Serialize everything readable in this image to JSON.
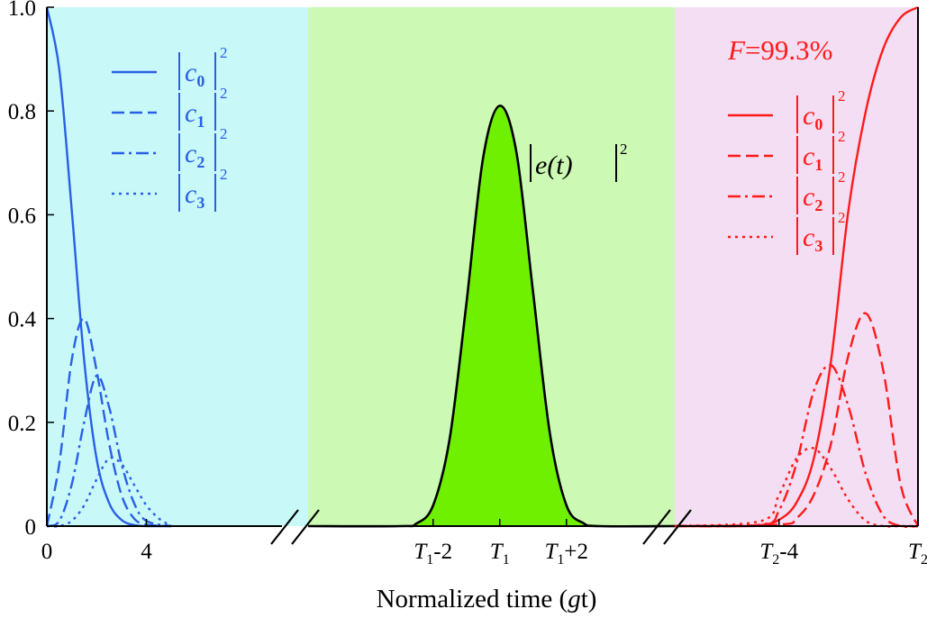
{
  "chart_data": {
    "type": "line",
    "xlabel": {
      "prefix": "Normalized time (",
      "var": "g",
      "suffix": "t)"
    },
    "ylim": [
      0,
      1.0
    ],
    "yticks": [
      "0",
      "0.2",
      "0.4",
      "0.6",
      "0.8",
      "1.0"
    ],
    "yvalues": [
      0,
      0.2,
      0.4,
      0.6,
      0.8,
      1.0
    ],
    "panels": [
      {
        "name": "initial",
        "background": "#c8f8f8",
        "color": "#2a60e6",
        "xlim": [
          0,
          10.5
        ],
        "xticks": [
          {
            "value": 0,
            "label": "0"
          },
          {
            "value": 4,
            "label": "4"
          }
        ],
        "legend": [
          "0",
          "1",
          "2",
          "3"
        ],
        "series": [
          {
            "name": "|c0|^2",
            "dash": "solid",
            "x": [
              0,
              0.5,
              1,
              1.5,
              2,
              2.5,
              3,
              3.5,
              4,
              5
            ],
            "y": [
              1.0,
              0.88,
              0.61,
              0.32,
              0.13,
              0.045,
              0.012,
              0.002,
              0.0,
              0.0
            ]
          },
          {
            "name": "|c1|^2",
            "dash": "dash",
            "x": [
              0,
              0.5,
              1,
              1.5,
              2,
              2.5,
              3,
              3.5,
              4,
              5
            ],
            "y": [
              0.0,
              0.12,
              0.32,
              0.4,
              0.3,
              0.16,
              0.06,
              0.015,
              0.003,
              0.0
            ]
          },
          {
            "name": "|c2|^2",
            "dash": "dashdot",
            "x": [
              0,
              0.5,
              1,
              1.5,
              2,
              2.5,
              3,
              3.5,
              4,
              5
            ],
            "y": [
              0.0,
              0.01,
              0.08,
              0.2,
              0.29,
              0.23,
              0.12,
              0.045,
              0.01,
              0.0
            ]
          },
          {
            "name": "|c3|^2",
            "dash": "dot",
            "x": [
              0,
              0.5,
              1,
              1.5,
              2,
              2.5,
              3,
              3.5,
              4,
              4.5,
              5
            ],
            "y": [
              0.0,
              0.0,
              0.01,
              0.04,
              0.09,
              0.13,
              0.12,
              0.08,
              0.04,
              0.015,
              0.0
            ]
          }
        ]
      },
      {
        "name": "transfer",
        "background": "#ccfab4",
        "color": "#000000",
        "fill": "#6ff000",
        "xlim": [
          -5.75,
          5.25
        ],
        "xticks": [
          {
            "value": -2,
            "sym": "T",
            "sub": "1",
            "suffix": "-2"
          },
          {
            "value": 0,
            "sym": "T",
            "sub": "1",
            "suffix": ""
          },
          {
            "value": 2,
            "sym": "T",
            "sub": "1",
            "suffix": "+2"
          }
        ],
        "annotation": "|e(t)|^2",
        "series": [
          {
            "name": "|e(t)|^2",
            "x": [
              -5.75,
              -3,
              -2.5,
              -2,
              -1.5,
              -1,
              -0.5,
              0,
              0.5,
              1,
              1.5,
              2,
              2.5,
              3,
              5.25
            ],
            "y": [
              0.0,
              0.0,
              0.005,
              0.04,
              0.17,
              0.43,
              0.71,
              0.81,
              0.72,
              0.45,
              0.18,
              0.04,
              0.006,
              0.0,
              0.0
            ]
          }
        ]
      },
      {
        "name": "final",
        "background": "#f3def3",
        "color": "#ff1a1a",
        "xlim": [
          -7.0,
          0
        ],
        "xticks": [
          {
            "value": -4,
            "sym": "T",
            "sub": "2",
            "suffix": "-4"
          },
          {
            "value": 0,
            "sym": "T",
            "sub": "2",
            "suffix": ""
          }
        ],
        "fidelity": {
          "sym": "F",
          "text": "=99.3%"
        },
        "legend": [
          "0",
          "1",
          "2",
          "3"
        ],
        "series": [
          {
            "name": "|c0|^2",
            "dash": "solid",
            "x": [
              -7,
              -5,
              -4.5,
              -4,
              -3.5,
              -3,
              -2.5,
              -2,
              -1.5,
              -1,
              -0.5,
              0
            ],
            "y": [
              0.0,
              0.0,
              0.002,
              0.012,
              0.045,
              0.13,
              0.32,
              0.61,
              0.8,
              0.92,
              0.98,
              1.0
            ]
          },
          {
            "name": "|c1|^2",
            "dash": "dash",
            "x": [
              -7,
              -4,
              -3.5,
              -3,
              -2.5,
              -2,
              -1.5,
              -1,
              -0.5,
              0
            ],
            "y": [
              0.0,
              0.003,
              0.015,
              0.06,
              0.16,
              0.33,
              0.41,
              0.3,
              0.08,
              0.0
            ]
          },
          {
            "name": "|c2|^2",
            "dash": "dashdot",
            "x": [
              -7,
              -4.5,
              -4,
              -3.5,
              -3,
              -2.5,
              -2,
              -1.5,
              -1,
              -0.5,
              0
            ],
            "y": [
              0.0,
              0.003,
              0.03,
              0.12,
              0.26,
              0.31,
              0.23,
              0.1,
              0.02,
              0.0,
              0.0
            ]
          },
          {
            "name": "|c3|^2",
            "dash": "dot",
            "x": [
              -7,
              -4.5,
              -4,
              -3.5,
              -3,
              -2.5,
              -2,
              -1.5,
              -1,
              -0.5,
              0
            ],
            "y": [
              0.0,
              0.01,
              0.06,
              0.13,
              0.15,
              0.11,
              0.05,
              0.01,
              0.0,
              0.0,
              0.0
            ]
          }
        ]
      }
    ]
  }
}
